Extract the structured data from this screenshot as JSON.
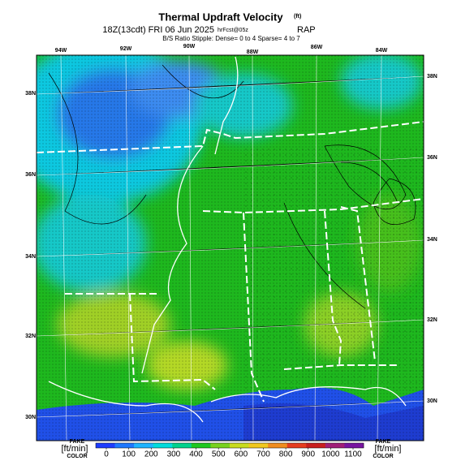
{
  "header": {
    "title": "Thermal Updraft Velocity",
    "title_unit": "(ft)",
    "time": "18Z(13cdt) FRI 06 Jun 2025",
    "forecast": "hrFcst@05z",
    "model": "RAP",
    "stipple": "B/S Ratio Stipple: Dense= 0 to 4  Sparse= 4 to 7"
  },
  "map": {
    "lon_labels": [
      "94W",
      "92W",
      "90W",
      "88W",
      "86W",
      "84W"
    ],
    "lat_labels_left": [
      "38N",
      "36N",
      "34N",
      "32N",
      "30N"
    ],
    "lat_labels_right": [
      "38N",
      "36N",
      "34N",
      "32N",
      "30N"
    ]
  },
  "colorbar": {
    "left_flag": "FAKE",
    "left_units": "[ft/min]",
    "left_color": "COLOR",
    "right_flag": "FAKE",
    "right_units": "[ft/min]",
    "right_color": "COLOR",
    "ticks": [
      0,
      100,
      200,
      300,
      400,
      500,
      600,
      700,
      800,
      900,
      1000,
      1100
    ],
    "colors": [
      "#1e3cff",
      "#1e78ff",
      "#1eb4ff",
      "#00dcdc",
      "#00d28c",
      "#1ec81e",
      "#78d21e",
      "#c8dc1e",
      "#f0c81e",
      "#f08c1e",
      "#e63c1e",
      "#c81e1e",
      "#a01e78",
      "#7814a0"
    ]
  }
}
